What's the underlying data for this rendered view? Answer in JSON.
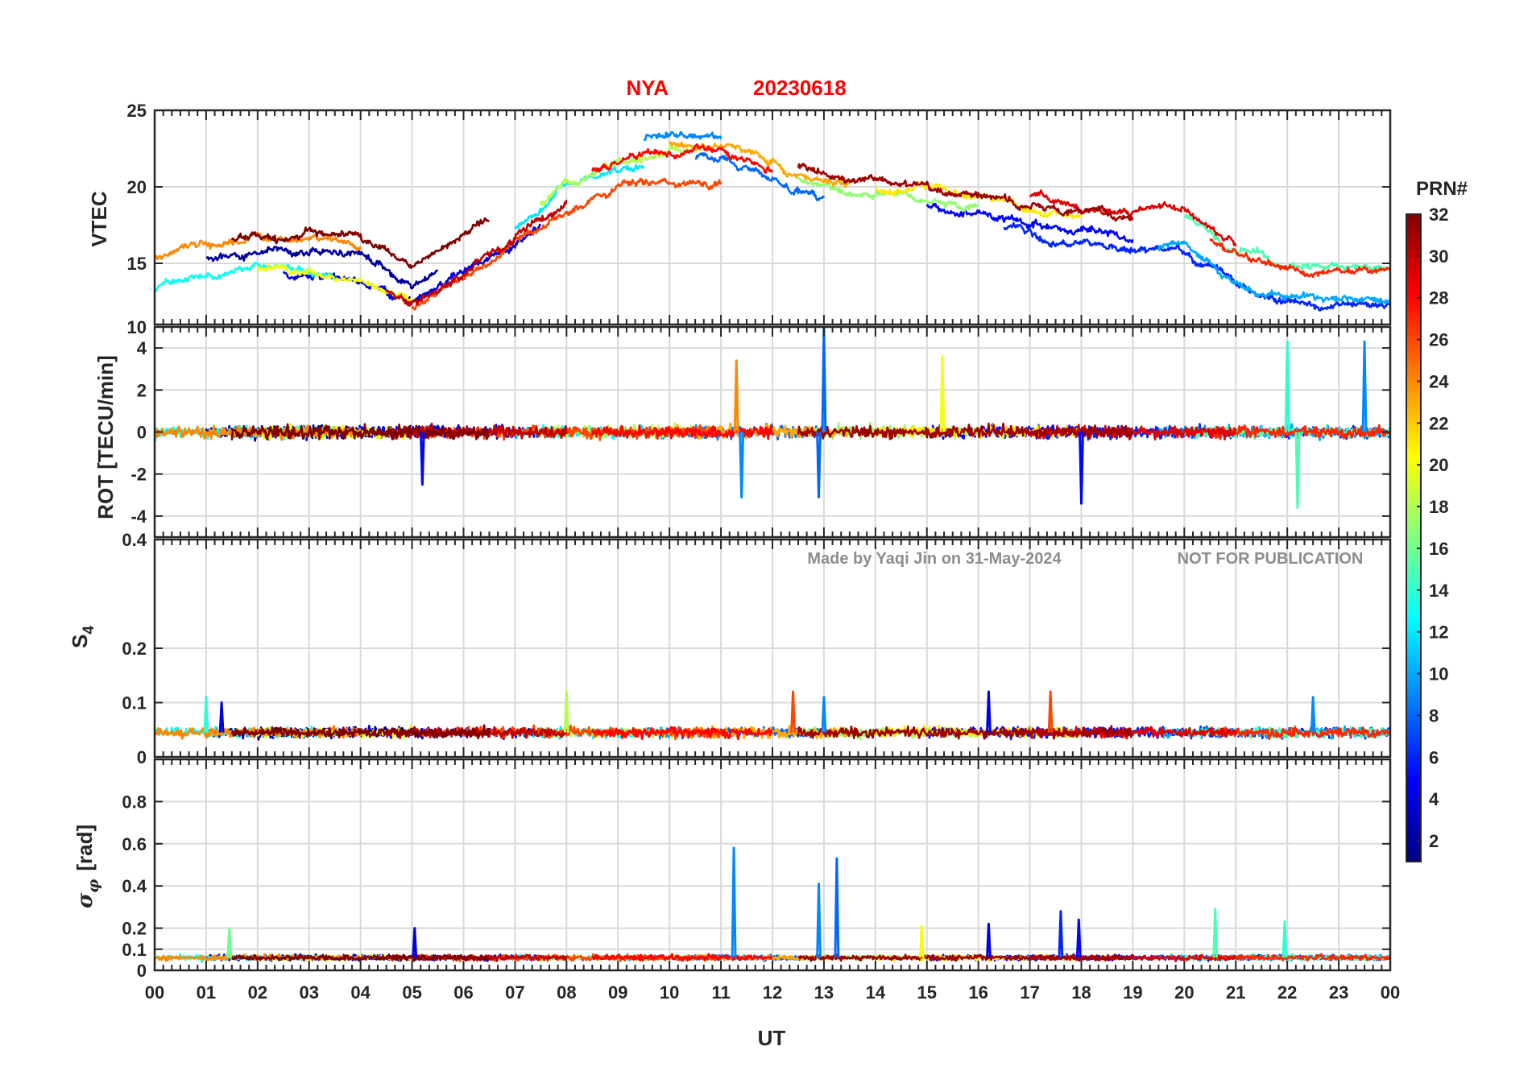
{
  "chart_data": {
    "type": "line",
    "title_station": "NYA",
    "title_date": "20230618",
    "x_label": "UT",
    "x_ticks": [
      "00",
      "01",
      "02",
      "03",
      "04",
      "05",
      "06",
      "07",
      "08",
      "09",
      "10",
      "11",
      "12",
      "13",
      "14",
      "15",
      "16",
      "17",
      "18",
      "19",
      "20",
      "21",
      "22",
      "23",
      "00"
    ],
    "xlim": [
      0,
      24
    ],
    "watermark_left": "Made by Yaqi Jin on 31-May-2024",
    "watermark_right": "NOT FOR PUBLICATION",
    "colorbar": {
      "title": "PRN#",
      "range": [
        1,
        32
      ],
      "ticks": [
        "2",
        "4",
        "6",
        "8",
        "10",
        "12",
        "14",
        "16",
        "18",
        "20",
        "22",
        "24",
        "26",
        "28",
        "30",
        "32"
      ],
      "colormap": "jet"
    },
    "panels": [
      {
        "name": "vtec",
        "ylabel": "VTEC",
        "ylim": [
          11,
          25
        ],
        "yticks": [
          "15",
          "20",
          "25"
        ],
        "y_tick_values": [
          15,
          20,
          25
        ],
        "series_profile": [
          [
            0,
            14
          ],
          [
            2,
            15.5
          ],
          [
            4,
            15
          ],
          [
            5,
            13.5
          ],
          [
            6,
            15.5
          ],
          [
            7,
            17.5
          ],
          [
            8,
            20
          ],
          [
            9,
            21.5
          ],
          [
            10,
            22
          ],
          [
            11,
            22
          ],
          [
            12,
            21
          ],
          [
            13,
            19.5
          ],
          [
            15,
            19
          ],
          [
            16,
            18.5
          ],
          [
            17,
            18
          ],
          [
            18,
            17.5
          ],
          [
            19,
            17
          ],
          [
            20,
            17
          ],
          [
            21,
            14.5
          ],
          [
            22,
            13.5
          ],
          [
            23,
            13.5
          ],
          [
            24,
            13.5
          ]
        ]
      },
      {
        "name": "rot",
        "ylabel": "ROT [TECU/min]",
        "ylim": [
          -5,
          5
        ],
        "yticks": [
          "-4",
          "-2",
          "0",
          "2",
          "4"
        ],
        "y_tick_values": [
          -4,
          -2,
          0,
          2,
          4
        ],
        "top_tick": "10",
        "spikes": [
          {
            "ut": 13.0,
            "value": 5.0,
            "prn": 8
          },
          {
            "ut": 12.9,
            "value": -3.1,
            "prn": 8
          },
          {
            "ut": 11.4,
            "value": -3.1,
            "prn": 9
          },
          {
            "ut": 11.3,
            "value": 3.4,
            "prn": 24
          },
          {
            "ut": 18.0,
            "value": -3.4,
            "prn": 5
          },
          {
            "ut": 22.0,
            "value": 4.3,
            "prn": 14
          },
          {
            "ut": 23.5,
            "value": 4.3,
            "prn": 9
          },
          {
            "ut": 22.2,
            "value": -3.6,
            "prn": 15
          },
          {
            "ut": 15.3,
            "value": 3.6,
            "prn": 20
          },
          {
            "ut": 5.2,
            "value": -2.5,
            "prn": 5
          }
        ]
      },
      {
        "name": "s4",
        "ylabel": "S",
        "ylabel_sub": "4",
        "ylim": [
          0,
          0.4
        ],
        "yticks": [
          "0",
          "0.1",
          "0.2"
        ],
        "y_tick_values": [
          0,
          0.1,
          0.2
        ],
        "top_tick": "0.4",
        "baseline": 0.045,
        "spikes": [
          {
            "ut": 1.3,
            "value": 0.1,
            "prn": 4
          },
          {
            "ut": 8.0,
            "value": 0.12,
            "prn": 18
          },
          {
            "ut": 12.4,
            "value": 0.12,
            "prn": 26
          },
          {
            "ut": 13.0,
            "value": 0.11,
            "prn": 9
          },
          {
            "ut": 16.2,
            "value": 0.12,
            "prn": 4
          },
          {
            "ut": 17.4,
            "value": 0.12,
            "prn": 26
          },
          {
            "ut": 22.5,
            "value": 0.11,
            "prn": 9
          },
          {
            "ut": 1.0,
            "value": 0.11,
            "prn": 14
          }
        ]
      },
      {
        "name": "sigma_phi",
        "ylabel": "σ",
        "ylabel_sub": "φ",
        "ylabel_suffix": "[rad]",
        "ylim": [
          0,
          1
        ],
        "yticks": [
          "0",
          "0.1",
          "0.2",
          "0.4",
          "0.6",
          "0.8"
        ],
        "y_tick_values": [
          0,
          0.1,
          0.2,
          0.4,
          0.6,
          0.8
        ],
        "baseline": 0.06,
        "spikes": [
          {
            "ut": 11.25,
            "value": 0.58,
            "prn": 9
          },
          {
            "ut": 12.9,
            "value": 0.41,
            "prn": 9
          },
          {
            "ut": 13.25,
            "value": 0.53,
            "prn": 8
          },
          {
            "ut": 20.6,
            "value": 0.29,
            "prn": 15
          },
          {
            "ut": 17.6,
            "value": 0.28,
            "prn": 6
          },
          {
            "ut": 17.95,
            "value": 0.24,
            "prn": 5
          },
          {
            "ut": 1.45,
            "value": 0.2,
            "prn": 16
          },
          {
            "ut": 5.05,
            "value": 0.2,
            "prn": 4
          },
          {
            "ut": 16.2,
            "value": 0.22,
            "prn": 4
          },
          {
            "ut": 21.95,
            "value": 0.23,
            "prn": 14
          },
          {
            "ut": 14.9,
            "value": 0.21,
            "prn": 20
          }
        ]
      }
    ],
    "series": [
      {
        "prn": 2,
        "ut_start": 1.0,
        "ut_end": 5.5
      },
      {
        "prn": 4,
        "ut_start": 2.5,
        "ut_end": 7.5
      },
      {
        "prn": 5,
        "ut_start": 15.0,
        "ut_end": 19.0
      },
      {
        "prn": 6,
        "ut_start": 16.5,
        "ut_end": 24.0
      },
      {
        "prn": 8,
        "ut_start": 10.5,
        "ut_end": 13.0
      },
      {
        "prn": 9,
        "ut_start": 9.5,
        "ut_end": 11.0
      },
      {
        "prn": 10,
        "ut_start": 19.5,
        "ut_end": 24.0
      },
      {
        "prn": 12,
        "ut_start": 7.0,
        "ut_end": 9.5
      },
      {
        "prn": 13,
        "ut_start": 0.0,
        "ut_end": 3.5
      },
      {
        "prn": 15,
        "ut_start": 20.0,
        "ut_end": 24.0
      },
      {
        "prn": 17,
        "ut_start": 12.5,
        "ut_end": 16.0
      },
      {
        "prn": 18,
        "ut_start": 7.5,
        "ut_end": 10.5
      },
      {
        "prn": 20,
        "ut_start": 2.0,
        "ut_end": 5.0
      },
      {
        "prn": 21,
        "ut_start": 14.0,
        "ut_end": 18.0
      },
      {
        "prn": 23,
        "ut_start": 10.0,
        "ut_end": 13.5
      },
      {
        "prn": 24,
        "ut_start": 0.0,
        "ut_end": 4.0
      },
      {
        "prn": 26,
        "ut_start": 5.0,
        "ut_end": 11.0
      },
      {
        "prn": 27,
        "ut_start": 20.5,
        "ut_end": 24.0
      },
      {
        "prn": 28,
        "ut_start": 8.5,
        "ut_end": 12.0
      },
      {
        "prn": 29,
        "ut_start": 17.0,
        "ut_end": 21.0
      },
      {
        "prn": 30,
        "ut_start": 4.5,
        "ut_end": 8.0
      },
      {
        "prn": 31,
        "ut_start": 12.5,
        "ut_end": 19.0
      },
      {
        "prn": 32,
        "ut_start": 1.5,
        "ut_end": 6.5
      }
    ]
  }
}
